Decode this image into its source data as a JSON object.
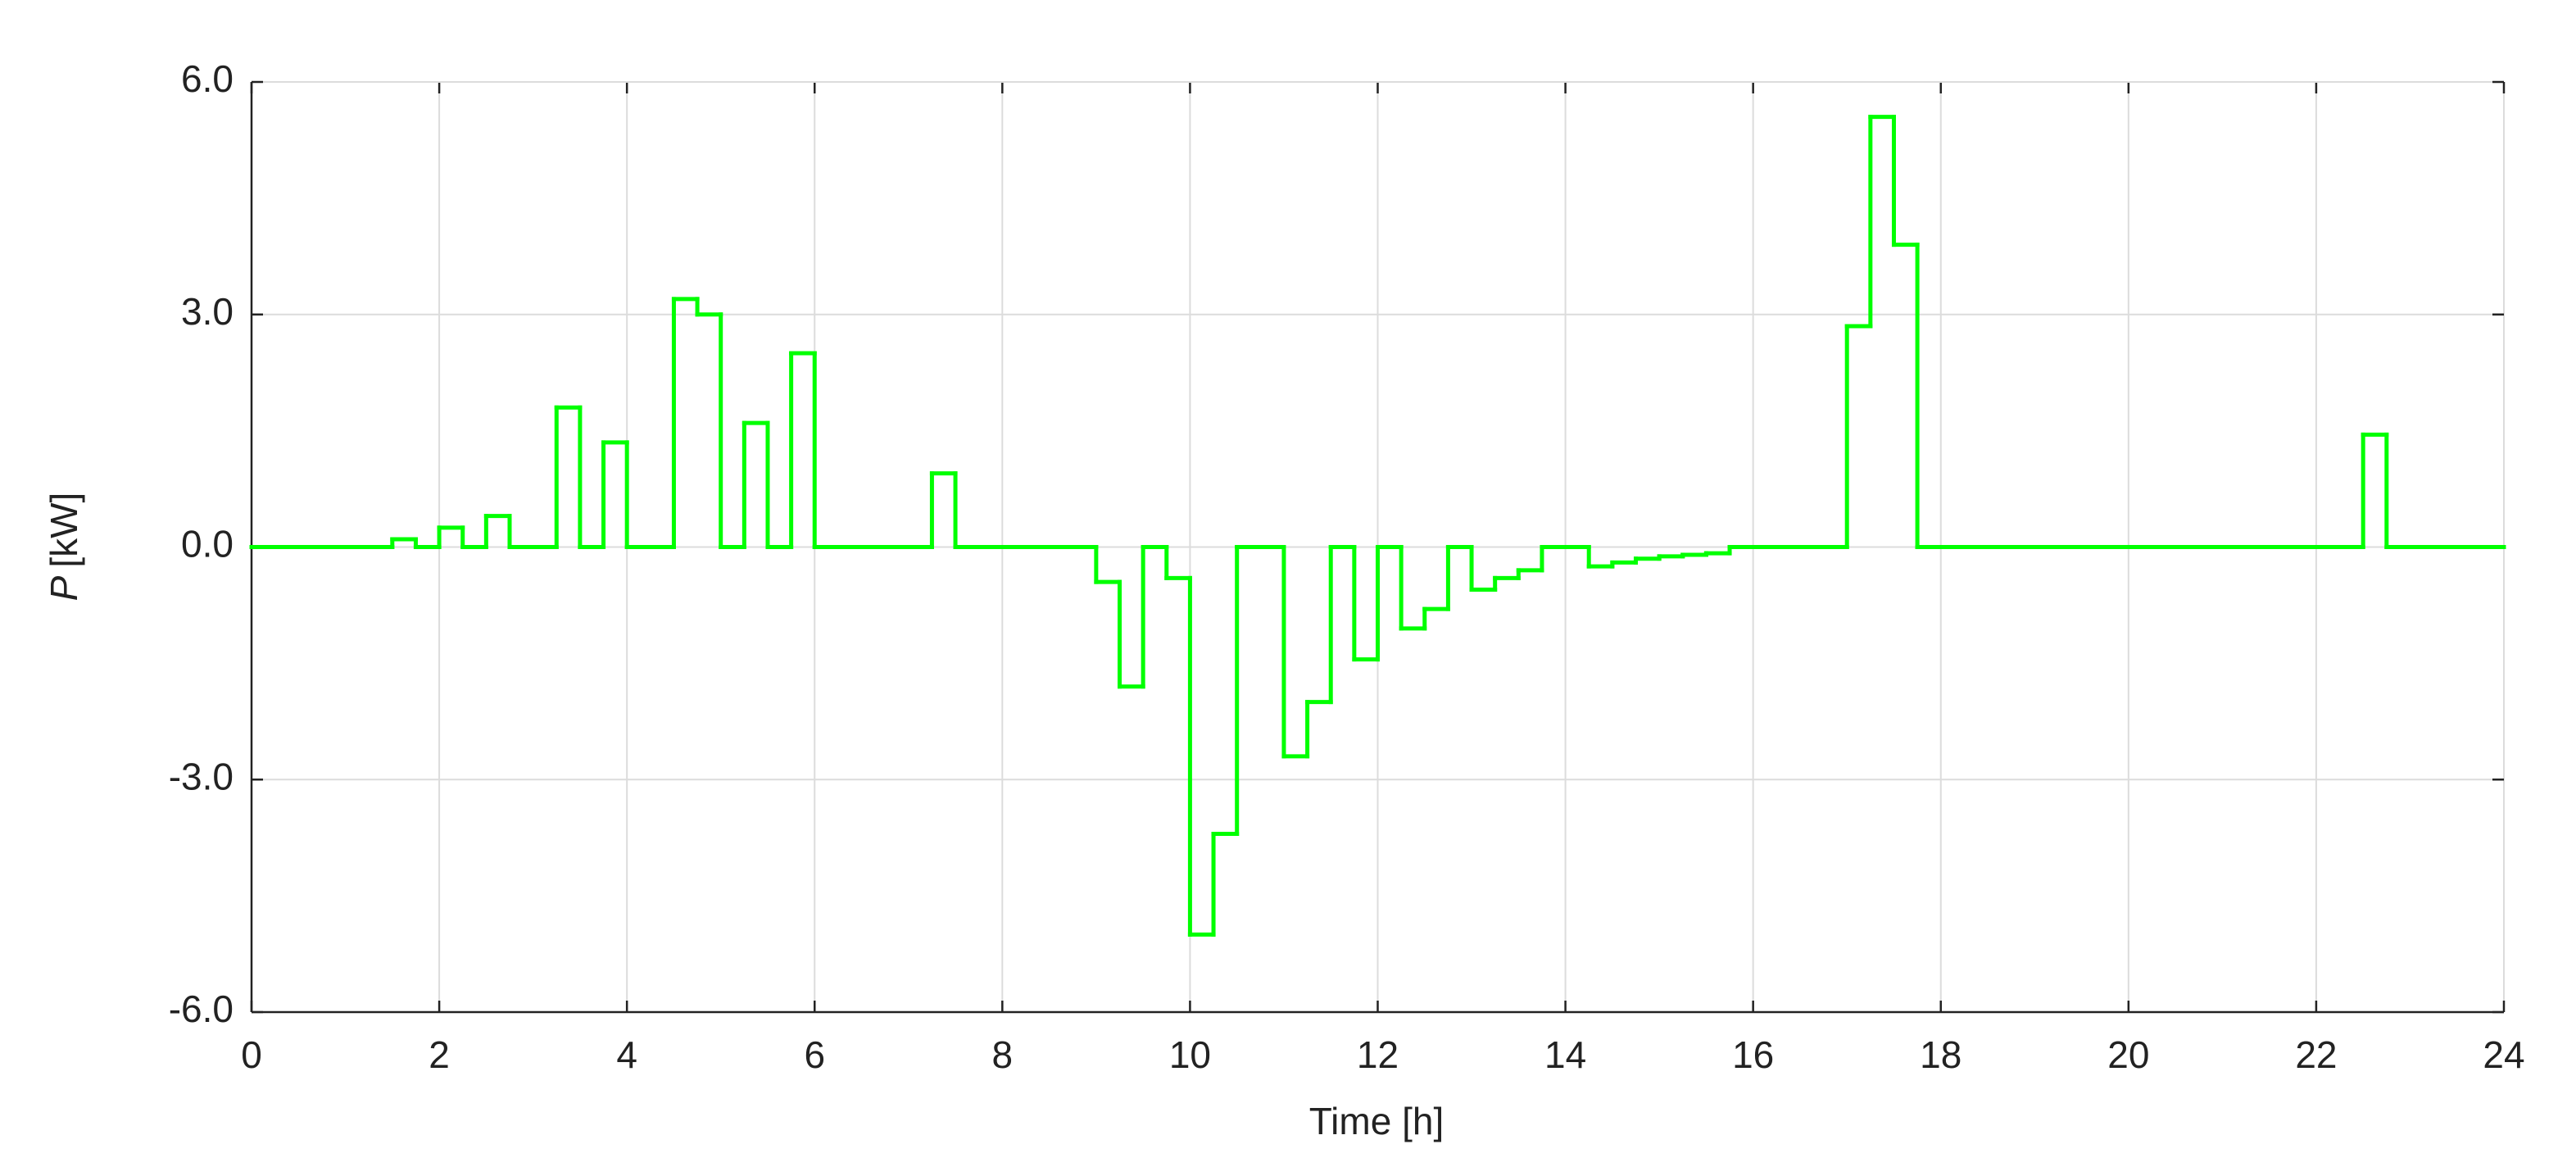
{
  "chart_data": {
    "type": "step",
    "xlabel": "Time [h]",
    "ylabel": {
      "symbol": "P",
      "unit": "[kW]"
    },
    "color": "#00ff00",
    "grid": true,
    "xlim": [
      0,
      24
    ],
    "xticks": [
      0,
      2,
      4,
      6,
      8,
      10,
      12,
      14,
      16,
      18,
      20,
      22,
      24
    ],
    "ylim": [
      -6,
      6
    ],
    "yticks": [
      {
        "value": 6,
        "label": "6.0"
      },
      {
        "value": 3,
        "label": "3.0"
      },
      {
        "value": 0,
        "label": "0.0"
      },
      {
        "value": -3,
        "label": "-3.0"
      },
      {
        "value": -6,
        "label": "-6.0"
      }
    ],
    "x": [
      0,
      1.5,
      1.75,
      2,
      2.25,
      2.5,
      2.75,
      3.25,
      3.5,
      3.75,
      4,
      4.5,
      4.75,
      5,
      5.25,
      5.5,
      5.75,
      6,
      7.25,
      7.5,
      9,
      9.25,
      9.5,
      9.75,
      10,
      10.25,
      10.5,
      11,
      11.25,
      11.5,
      11.75,
      12,
      12.25,
      12.5,
      12.75,
      13,
      13.25,
      13.5,
      13.75,
      14.25,
      14.5,
      14.75,
      15,
      15.25,
      15.5,
      15.75,
      17,
      17.25,
      17.5,
      17.75,
      22.5,
      22.75,
      24
    ],
    "values": [
      0,
      0.1,
      0,
      0.25,
      0,
      0.4,
      0,
      1.8,
      0,
      1.35,
      0,
      3.2,
      3.0,
      0,
      1.6,
      0,
      2.5,
      0,
      0.95,
      0,
      -0.45,
      -1.8,
      0,
      -0.4,
      -5.0,
      -3.7,
      0,
      -2.7,
      -2.0,
      0,
      -1.45,
      0,
      -1.05,
      -0.8,
      0,
      -0.55,
      -0.4,
      -0.3,
      0,
      -0.25,
      -0.2,
      -0.15,
      -0.12,
      -0.1,
      -0.08,
      0,
      2.85,
      5.55,
      3.9,
      0,
      1.45,
      0,
      0
    ]
  }
}
